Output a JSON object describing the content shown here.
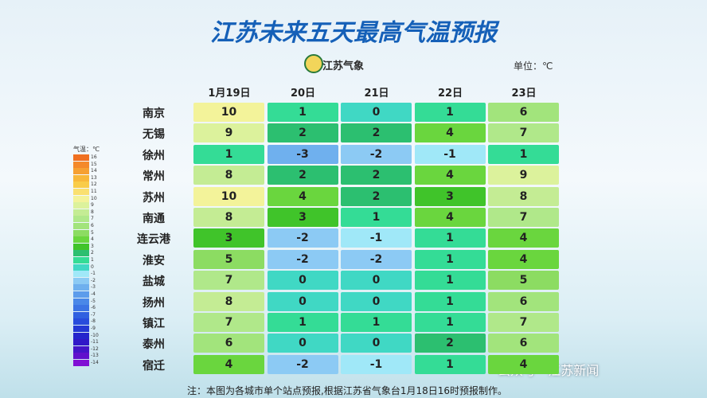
{
  "header": {
    "title": "江苏未来五天最高气温预报",
    "logo": "江苏气象",
    "unit": "单位：℃"
  },
  "table": {
    "columns": [
      "1月19日",
      "20日",
      "21日",
      "22日",
      "23日"
    ],
    "rows": [
      {
        "city": "南京",
        "values": [
          10,
          1,
          0,
          1,
          6
        ]
      },
      {
        "city": "无锡",
        "values": [
          9,
          2,
          2,
          4,
          7
        ]
      },
      {
        "city": "徐州",
        "values": [
          1,
          -3,
          -2,
          -1,
          1
        ]
      },
      {
        "city": "常州",
        "values": [
          8,
          2,
          2,
          4,
          9
        ]
      },
      {
        "city": "苏州",
        "values": [
          10,
          4,
          2,
          3,
          8
        ]
      },
      {
        "city": "南通",
        "values": [
          8,
          3,
          1,
          4,
          7
        ]
      },
      {
        "city": "连云港",
        "values": [
          3,
          -2,
          -1,
          1,
          4
        ]
      },
      {
        "city": "淮安",
        "values": [
          5,
          -2,
          -2,
          1,
          4
        ]
      },
      {
        "city": "盐城",
        "values": [
          7,
          0,
          0,
          1,
          5
        ]
      },
      {
        "city": "扬州",
        "values": [
          8,
          0,
          0,
          1,
          6
        ]
      },
      {
        "city": "镇江",
        "values": [
          7,
          1,
          1,
          1,
          7
        ]
      },
      {
        "city": "泰州",
        "values": [
          6,
          0,
          0,
          2,
          6
        ]
      },
      {
        "city": "宿迁",
        "values": [
          4,
          -2,
          -1,
          1,
          4
        ]
      }
    ]
  },
  "legend": {
    "label": "气温：℃",
    "ticks": [
      16,
      15,
      14,
      13,
      12,
      11,
      10,
      9,
      8,
      7,
      6,
      5,
      4,
      3,
      2,
      1,
      0,
      -1,
      -2,
      -3,
      -4,
      -5,
      -6,
      -7,
      -8,
      -9,
      -10,
      -11,
      -12,
      -13,
      -14
    ],
    "colors": [
      "#f07020",
      "#f4892a",
      "#f6a032",
      "#f8b83a",
      "#f9cc48",
      "#fae070",
      "#f3f39a",
      "#dcf29c",
      "#c4ec94",
      "#b0e88a",
      "#a2e47c",
      "#8cdc62",
      "#6ad63e",
      "#40c42a",
      "#2cbf70",
      "#34dc96",
      "#40d8c4",
      "#a0e8f8",
      "#8ccaf4",
      "#6fb0ee",
      "#5c9ceb",
      "#4a88e8",
      "#3c74e4",
      "#3060e0",
      "#284cdc",
      "#2438d4",
      "#2424cc",
      "#3018c8",
      "#4414c8",
      "#6010cc",
      "#8010d4"
    ]
  },
  "footer": {
    "note": "注：本图为各城市单个站点预报,根据江苏省气象台1月18日16时预报制作。",
    "watermark": "公众号 · 江苏新闻"
  }
}
